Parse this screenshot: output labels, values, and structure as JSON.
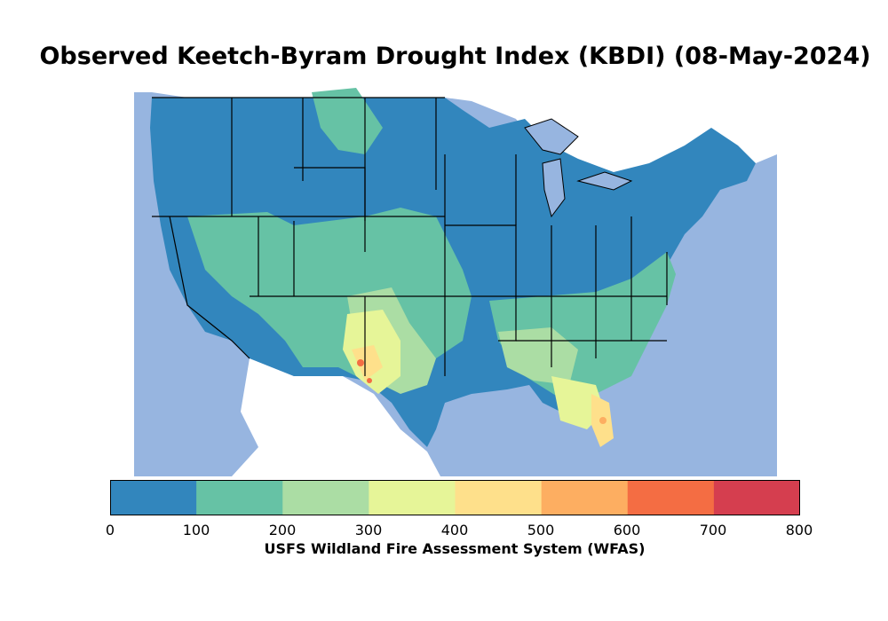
{
  "title": "Observed Keetch-Byram Drought Index (KBDI) (08-May-2024)",
  "colorbar": {
    "label": "USFS Wildland Fire Assessment System (WFAS)",
    "ticks": [
      "0",
      "100",
      "200",
      "300",
      "400",
      "500",
      "600",
      "700",
      "800"
    ],
    "bins": [
      {
        "range": "0-100",
        "color": "#3286bd"
      },
      {
        "range": "100-200",
        "color": "#66c2a5"
      },
      {
        "range": "200-300",
        "color": "#abdda4"
      },
      {
        "range": "300-400",
        "color": "#e6f598"
      },
      {
        "range": "400-500",
        "color": "#fee08b"
      },
      {
        "range": "500-600",
        "color": "#fdae61"
      },
      {
        "range": "600-700",
        "color": "#f46d43"
      },
      {
        "range": "700-800",
        "color": "#d53e4f"
      }
    ]
  },
  "map": {
    "ocean_color": "#97b5e0",
    "land_outside_color": "#ffffff",
    "border_color": "#000000"
  }
}
